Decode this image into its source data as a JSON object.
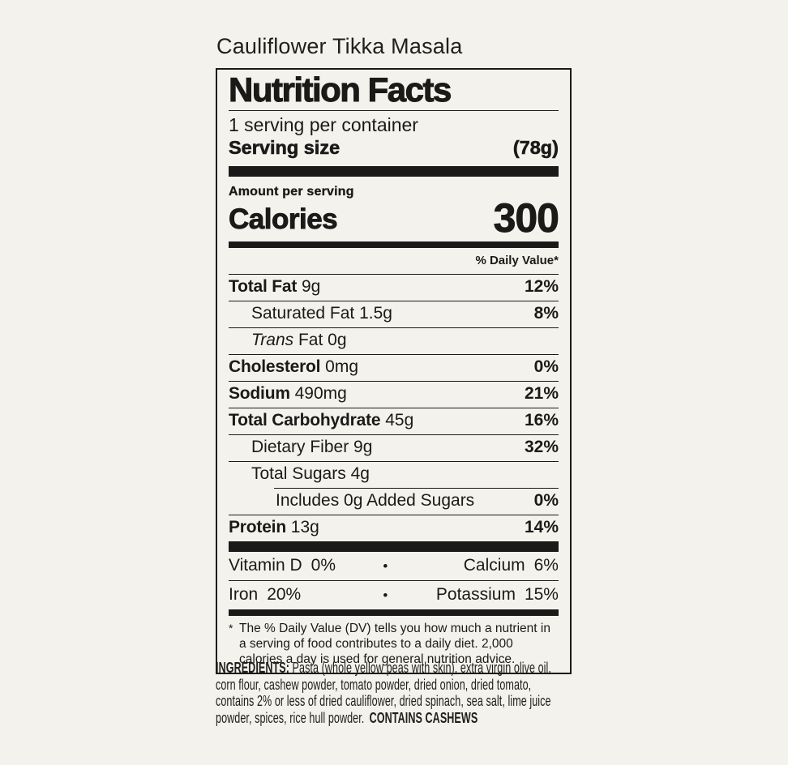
{
  "colors": {
    "background": "#f4f2ed",
    "ink": "#1b1a18"
  },
  "title": "Cauliflower Tikka Masala",
  "label": {
    "heading": "Nutrition Facts",
    "servings_per_container": "1 serving per container",
    "serving_size_label": "Serving size",
    "serving_size_value": "(78g)",
    "amount_per_serving": "Amount per serving",
    "calories_label": "Calories",
    "calories_value": "300",
    "daily_value_header": "% Daily Value*",
    "nutrients": [
      {
        "name": "Total Fat",
        "amount": "9g",
        "dv": "12%",
        "indent": 0,
        "bold": true
      },
      {
        "name": "Saturated Fat",
        "amount": "1.5g",
        "dv": "8%",
        "indent": 1
      },
      {
        "name": "Trans",
        "amount": "Fat 0g",
        "dv": "",
        "indent": 1,
        "italic": true
      },
      {
        "name": "Cholesterol",
        "amount": "0mg",
        "dv": "0%",
        "indent": 0,
        "bold": true
      },
      {
        "name": "Sodium",
        "amount": "490mg",
        "dv": "21%",
        "indent": 0,
        "bold": true
      },
      {
        "name": "Total Carbohydrate",
        "amount": "45g",
        "dv": "16%",
        "indent": 0,
        "bold": true
      },
      {
        "name": "Dietary Fiber",
        "amount": "9g",
        "dv": "32%",
        "indent": 1
      },
      {
        "name": "Total Sugars",
        "amount": "4g",
        "dv": "",
        "indent": 1
      },
      {
        "name": "Includes 0g Added Sugars",
        "amount": "",
        "dv": "0%",
        "indent": 2,
        "sep": "indent"
      },
      {
        "name": "Protein",
        "amount": "13g",
        "dv": "14%",
        "indent": 0,
        "bold": true
      }
    ],
    "micronutrients": [
      {
        "left_name": "Vitamin D",
        "left_value": "0%",
        "bullet": "•",
        "right_name": "Calcium",
        "right_value": "6%"
      },
      {
        "left_name": "Iron",
        "left_value": "20%",
        "bullet": "•",
        "right_name": "Potassium",
        "right_value": "15%"
      }
    ],
    "footnote_marker": "*",
    "footnote": "The % Daily Value (DV) tells you how much a nutrient in a serving of food contributes to a daily diet. 2,000 calories a day is used for general nutrition advice."
  },
  "ingredients": {
    "label": "INGREDIENTS:",
    "text": "Pasta (whole yellow peas with skin), extra virgin olive oil, corn flour, cashew powder, tomato powder, dried onion, dried tomato, contains 2% or less of dried cauliflower, dried spinach, sea salt, lime juice powder, spices, rice hull powder.",
    "allergen": "CONTAINS CASHEWS"
  }
}
